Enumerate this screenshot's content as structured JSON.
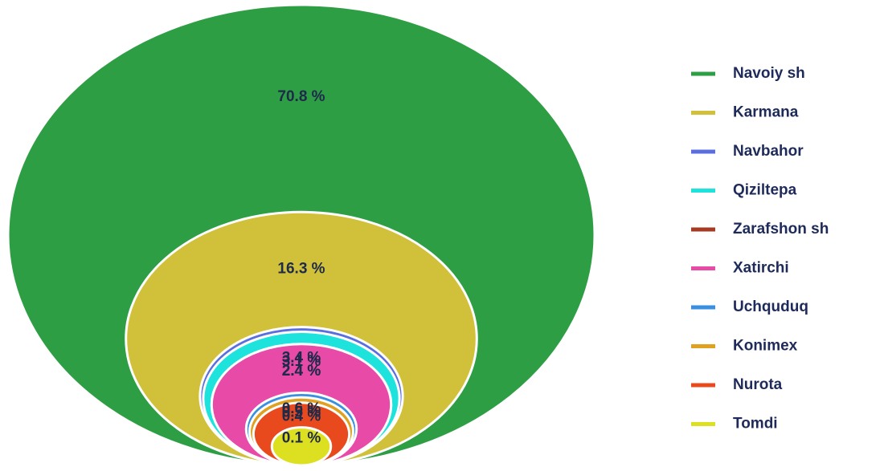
{
  "chart_data": {
    "type": "circles",
    "series": [
      {
        "name": "Navoiy sh",
        "color": "#2e9e44",
        "values": [
          70.8
        ],
        "value_labels": [
          "70.8 %"
        ]
      },
      {
        "name": "Karmana",
        "color": "#d1c03a",
        "values": [
          16.3
        ],
        "value_labels": [
          "16.3 %"
        ]
      },
      {
        "name": "Navbahor",
        "color": "#5a6ee0",
        "values": [
          3.4
        ],
        "value_labels": [
          "3.4 %"
        ]
      },
      {
        "name": "Qiziltepa",
        "color": "#1ee3dc",
        "values": [
          3.1
        ],
        "value_labels": [
          "3.1 %"
        ]
      },
      {
        "name": "Zarafshon sh",
        "color": "#a63a22",
        "values": [
          2.4
        ],
        "value_labels": [
          "2.4 %"
        ]
      },
      {
        "name": "Xatirchi",
        "color": "#e84aa8",
        "values": [
          2.4
        ],
        "value_labels": [
          "2.4 %"
        ]
      },
      {
        "name": "Uchquduq",
        "color": "#3a8fe0",
        "values": [
          0.6
        ],
        "value_labels": [
          "0.6 %"
        ]
      },
      {
        "name": "Konimex",
        "color": "#e0a020",
        "values": [
          0.5
        ],
        "value_labels": [
          "0.5 %"
        ]
      },
      {
        "name": "Nurota",
        "color": "#e84a1e",
        "values": [
          0.4
        ],
        "value_labels": [
          "0.4 %"
        ]
      },
      {
        "name": "Tomdi",
        "color": "#dde020",
        "values": [
          0.1
        ],
        "value_labels": [
          "0.1 %"
        ]
      }
    ],
    "legend": "right"
  }
}
